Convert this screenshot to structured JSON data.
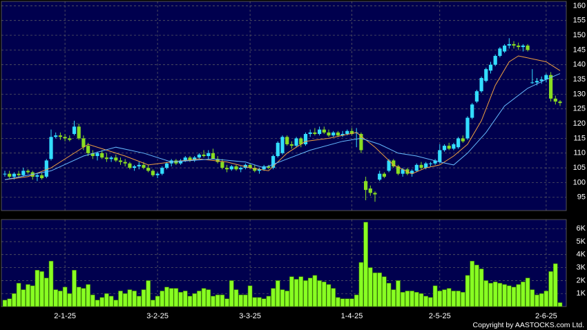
{
  "footer": "Copyright by AASTOCKS.com Ltd.",
  "chart_data": [
    {
      "type": "candlestick",
      "up_color": "#33ddff",
      "down_color": "#88dd22",
      "grid": true,
      "ylim": [
        90.5,
        161.5
      ],
      "yticks": [
        95,
        100,
        105,
        110,
        115,
        120,
        125,
        130,
        135,
        140,
        145,
        150,
        155,
        160
      ],
      "candles": [
        [
          103,
          104,
          102,
          103
        ],
        [
          103,
          104,
          101.5,
          102
        ],
        [
          102,
          103.5,
          101,
          103
        ],
        [
          103,
          104,
          102,
          102.5
        ],
        [
          102.5,
          105,
          102,
          104
        ],
        [
          104,
          104.5,
          103,
          103.5
        ],
        [
          103.5,
          104,
          101,
          102
        ],
        [
          102,
          103,
          100.5,
          102.5
        ],
        [
          102.5,
          103.5,
          101,
          101.5
        ],
        [
          102,
          108,
          101.5,
          107.5
        ],
        [
          108,
          118,
          107.5,
          115.5
        ],
        [
          115.5,
          117,
          115,
          116
        ],
        [
          116,
          117,
          114.5,
          115.5
        ],
        [
          115.5,
          116.5,
          114,
          115
        ],
        [
          115,
          116,
          114,
          114.5
        ],
        [
          116.5,
          121,
          116,
          119
        ],
        [
          119,
          120,
          114.5,
          115
        ],
        [
          115,
          116,
          111,
          112
        ],
        [
          112.5,
          113.5,
          109,
          110
        ],
        [
          110,
          111,
          108,
          109
        ],
        [
          109,
          110.5,
          107.5,
          110
        ],
        [
          110,
          111,
          108,
          108.5
        ],
        [
          108.5,
          110,
          107,
          108
        ],
        [
          108,
          109,
          107,
          108.5
        ],
        [
          108.5,
          109.5,
          107,
          107.5
        ],
        [
          107.5,
          108.5,
          106,
          107
        ],
        [
          107,
          108,
          105.5,
          106.5
        ],
        [
          106.5,
          107,
          104.5,
          105
        ],
        [
          105,
          106,
          104,
          105.5
        ],
        [
          105.5,
          107,
          104.5,
          106
        ],
        [
          106,
          107,
          104.5,
          105
        ],
        [
          105,
          106,
          103.5,
          104
        ],
        [
          104,
          104.5,
          102,
          102.5
        ],
        [
          102.5,
          103.5,
          101.5,
          103
        ],
        [
          103,
          105.5,
          102.5,
          105
        ],
        [
          105,
          107,
          104.5,
          106.5
        ],
        [
          106.5,
          108,
          105.5,
          107.5
        ],
        [
          107.5,
          108,
          106,
          106.5
        ],
        [
          106.5,
          108,
          106,
          107.5
        ],
        [
          107.5,
          109,
          107,
          108.5
        ],
        [
          108.5,
          109,
          107,
          107.5
        ],
        [
          107.5,
          109,
          107,
          108.5
        ],
        [
          108.5,
          110,
          108,
          109.5
        ],
        [
          109.5,
          111,
          108.5,
          109
        ],
        [
          109,
          111,
          108,
          110
        ],
        [
          110,
          111.5,
          108,
          108
        ],
        [
          108,
          109,
          106.5,
          107
        ],
        [
          107,
          108,
          104.5,
          105
        ],
        [
          105,
          106,
          103.5,
          104.5
        ],
        [
          104.5,
          106,
          104,
          105.5
        ],
        [
          105.5,
          106,
          104,
          104.5
        ],
        [
          104.5,
          105.5,
          103.5,
          105
        ],
        [
          105,
          106.5,
          104.5,
          106
        ],
        [
          106,
          106.5,
          104.5,
          105
        ],
        [
          105,
          106,
          103.5,
          104
        ],
        [
          104,
          105,
          103,
          104.5
        ],
        [
          104.5,
          106,
          104,
          105.5
        ],
        [
          105.5,
          106,
          104.5,
          105
        ],
        [
          105,
          109.5,
          104.5,
          109
        ],
        [
          109,
          114,
          108.5,
          113.5
        ],
        [
          110,
          116,
          109.5,
          115.5
        ],
        [
          115.5,
          116,
          112.5,
          113
        ],
        [
          113,
          114,
          111.5,
          112.5
        ],
        [
          112.5,
          115.5,
          112,
          115
        ],
        [
          115,
          115.5,
          112,
          113
        ],
        [
          113,
          117,
          112.5,
          116.5
        ],
        [
          116.5,
          118,
          115.5,
          117
        ],
        [
          117,
          118.5,
          116,
          116.5
        ],
        [
          116.5,
          119,
          116,
          118
        ],
        [
          118,
          119,
          116.5,
          117
        ],
        [
          117,
          118,
          115.5,
          116
        ],
        [
          116,
          117.5,
          115.5,
          117
        ],
        [
          117,
          117.5,
          115.5,
          116
        ],
        [
          116,
          117.5,
          115.5,
          116.5
        ],
        [
          116.5,
          118,
          116,
          117.5
        ],
        [
          117.5,
          118.5,
          116,
          116.5
        ],
        [
          117,
          118.5,
          112,
          117
        ],
        [
          116.5,
          117,
          110,
          111
        ],
        [
          100.5,
          102,
          94,
          97.5
        ],
        [
          98,
          99,
          95.5,
          96.5
        ],
        [
          96.5,
          97,
          93.5,
          96
        ],
        [
          101,
          104,
          100.5,
          103
        ],
        [
          103,
          103.5,
          101.5,
          102
        ],
        [
          104,
          108,
          103.5,
          107.5
        ],
        [
          107.5,
          108,
          105,
          105.5
        ],
        [
          105.5,
          106,
          102.5,
          103
        ],
        [
          103,
          105,
          102,
          104.5
        ],
        [
          104.5,
          105,
          102.5,
          103
        ],
        [
          103,
          104.5,
          102,
          104
        ],
        [
          104,
          106.5,
          103.5,
          106
        ],
        [
          106,
          107,
          104.5,
          105
        ],
        [
          105,
          107,
          104.5,
          106.5
        ],
        [
          106.5,
          107,
          105.5,
          106.5
        ],
        [
          106.5,
          108,
          106,
          107.5
        ],
        [
          107,
          113,
          106.5,
          111
        ],
        [
          111,
          113,
          110.5,
          112.5
        ],
        [
          112.5,
          113.5,
          111,
          111.5
        ],
        [
          111.5,
          113.5,
          111,
          113
        ],
        [
          112,
          115.5,
          111.5,
          115
        ],
        [
          115,
          116,
          113.5,
          114
        ],
        [
          115,
          122.5,
          114.5,
          122
        ],
        [
          122,
          127,
          121.5,
          126.5
        ],
        [
          127.5,
          131.5,
          127,
          131
        ],
        [
          131,
          136,
          130.5,
          135.5
        ],
        [
          134.5,
          139,
          134,
          138.5
        ],
        [
          138,
          141,
          137,
          140
        ],
        [
          140,
          143.5,
          139.5,
          143
        ],
        [
          143,
          146,
          142.5,
          145.5
        ],
        [
          144.5,
          147,
          144,
          146.5
        ],
        [
          146.5,
          149,
          145.5,
          147
        ],
        [
          147,
          148,
          145.5,
          146.5
        ],
        [
          146.5,
          147.5,
          145,
          146
        ],
        [
          146,
          147,
          144.5,
          146.5
        ],
        [
          146.5,
          147,
          144.5,
          145
        ],
        [
          134,
          138.5,
          133.5,
          134
        ],
        [
          134,
          135.5,
          133,
          134.5
        ],
        [
          134.5,
          136,
          133.5,
          135
        ],
        [
          135,
          137,
          134,
          136.5
        ],
        [
          136.5,
          137.5,
          127.5,
          128.5
        ],
        [
          128.5,
          129.5,
          126.5,
          127.5
        ],
        [
          127.5,
          128,
          126,
          127
        ]
      ],
      "lines": [
        {
          "color": "#f0a040",
          "x": [
            0,
            5,
            10,
            14,
            18,
            22,
            26,
            31,
            36,
            42,
            48,
            53,
            57,
            61,
            65,
            70,
            76,
            80,
            84,
            88,
            91,
            94,
            97,
            100,
            103,
            106,
            109,
            111,
            114,
            117,
            120
          ],
          "values": [
            101,
            102,
            105,
            109,
            113,
            111,
            109,
            106,
            107,
            108,
            107,
            105,
            104,
            110,
            114,
            115,
            117,
            112,
            106,
            103,
            105,
            106,
            109,
            113,
            121,
            133,
            141,
            143,
            142,
            141,
            138
          ]
        },
        {
          "color": "#66bbff",
          "x": [
            0,
            10,
            17,
            24,
            30,
            36,
            45,
            52,
            56,
            61,
            66,
            73,
            77,
            81,
            85,
            89,
            94,
            97,
            100,
            104,
            108,
            113,
            117,
            120
          ],
          "values": [
            101,
            104,
            109,
            112,
            110,
            107,
            108,
            107,
            105,
            108,
            111,
            114,
            115,
            113,
            110,
            109,
            107,
            106,
            110,
            117,
            126,
            132,
            135,
            137
          ]
        }
      ]
    },
    {
      "type": "bar",
      "color": "#88ff22",
      "grid": true,
      "ylim": [
        0,
        6700
      ],
      "yticks": [
        {
          "value": 1000,
          "label": "1K"
        },
        {
          "value": 2000,
          "label": "2K"
        },
        {
          "value": 3000,
          "label": "3K"
        },
        {
          "value": 4000,
          "label": "4K"
        },
        {
          "value": 5000,
          "label": "5K"
        },
        {
          "value": 6000,
          "label": "6K"
        }
      ],
      "categories": [
        null,
        null,
        null,
        null,
        null,
        null,
        null,
        null,
        null,
        null,
        null,
        null,
        null,
        "2-1-25",
        null,
        null,
        null,
        null,
        null,
        null,
        null,
        null,
        null,
        null,
        null,
        null,
        null,
        null,
        null,
        null,
        null,
        null,
        null,
        "3-2-25",
        null,
        null,
        null,
        null,
        null,
        null,
        null,
        null,
        null,
        null,
        null,
        null,
        null,
        null,
        null,
        null,
        null,
        null,
        null,
        "3-3-25",
        null,
        null,
        null,
        null,
        null,
        null,
        null,
        null,
        null,
        null,
        null,
        null,
        null,
        null,
        null,
        null,
        null,
        null,
        null,
        null,
        null,
        "1-4-25",
        null,
        null,
        null,
        null,
        null,
        null,
        null,
        null,
        null,
        null,
        null,
        null,
        null,
        null,
        null,
        null,
        null,
        null,
        "2-5-25",
        null,
        null,
        null,
        null,
        null,
        null,
        null,
        null,
        null,
        null,
        null,
        null,
        null,
        null,
        null,
        null,
        null,
        null,
        null,
        null,
        null,
        null,
        "2-6-25",
        null,
        null,
        null
      ],
      "values": [
        500,
        600,
        1000,
        1800,
        1300,
        1700,
        1600,
        2800,
        2700,
        2200,
        3500,
        1300,
        1200,
        1500,
        1000,
        2800,
        1500,
        1400,
        1700,
        900,
        500,
        700,
        1000,
        800,
        500,
        1200,
        1000,
        1300,
        1200,
        800,
        1300,
        2000,
        500,
        800,
        1200,
        1500,
        1400,
        1400,
        1100,
        1200,
        800,
        1000,
        1200,
        1400,
        1300,
        800,
        900,
        900,
        600,
        2000,
        1300,
        900,
        900,
        1600,
        700,
        700,
        600,
        800,
        1400,
        2000,
        1300,
        1200,
        2300,
        2100,
        2300,
        2000,
        2200,
        2400,
        2000,
        1900,
        1700,
        1400,
        700,
        600,
        600,
        600,
        900,
        3400,
        6500,
        3000,
        2600,
        2600,
        2300,
        1800,
        1300,
        2000,
        1100,
        1200,
        1200,
        1100,
        1000,
        800,
        700,
        1600,
        1200,
        1300,
        1400,
        1200,
        1200,
        1100,
        2400,
        3500,
        3200,
        2900,
        2000,
        1800,
        1900,
        1800,
        1700,
        1600,
        1500,
        1700,
        1900,
        2200,
        1300,
        900,
        1000,
        1200,
        2700,
        3300,
        300
      ]
    }
  ]
}
